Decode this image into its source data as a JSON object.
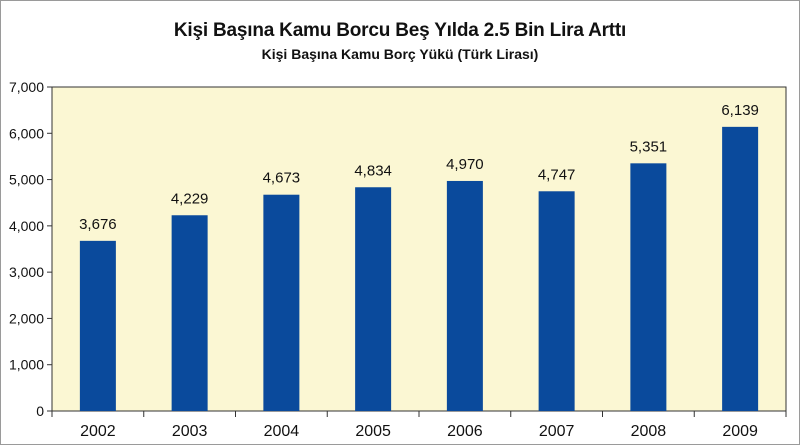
{
  "colors": {
    "plot_background": "#fbf7d3",
    "bar": "#0a4a9c",
    "axis": "#333333",
    "grid": "#cccccc"
  },
  "chart_data": {
    "type": "bar",
    "title": "Kişi Başına Kamu Borcu Beş Yılda 2.5 Bin Lira Arttı",
    "subtitle": "Kişi Başına Kamu Borç Yükü (Türk Lirası)",
    "categories": [
      "2002",
      "2003",
      "2004",
      "2005",
      "2006",
      "2007",
      "2008",
      "2009"
    ],
    "values": [
      3676,
      4229,
      4673,
      4834,
      4970,
      4747,
      5351,
      6139
    ],
    "value_labels": [
      "3,676",
      "4,229",
      "4,673",
      "4,834",
      "4,970",
      "4,747",
      "5,351",
      "6,139"
    ],
    "yticks": [
      "0",
      "1,000",
      "2,000",
      "3,000",
      "4,000",
      "5,000",
      "6,000",
      "7,000"
    ],
    "ylim": [
      0,
      7000
    ],
    "xlabel": "",
    "ylabel": "",
    "grid": false,
    "legend": "none"
  }
}
